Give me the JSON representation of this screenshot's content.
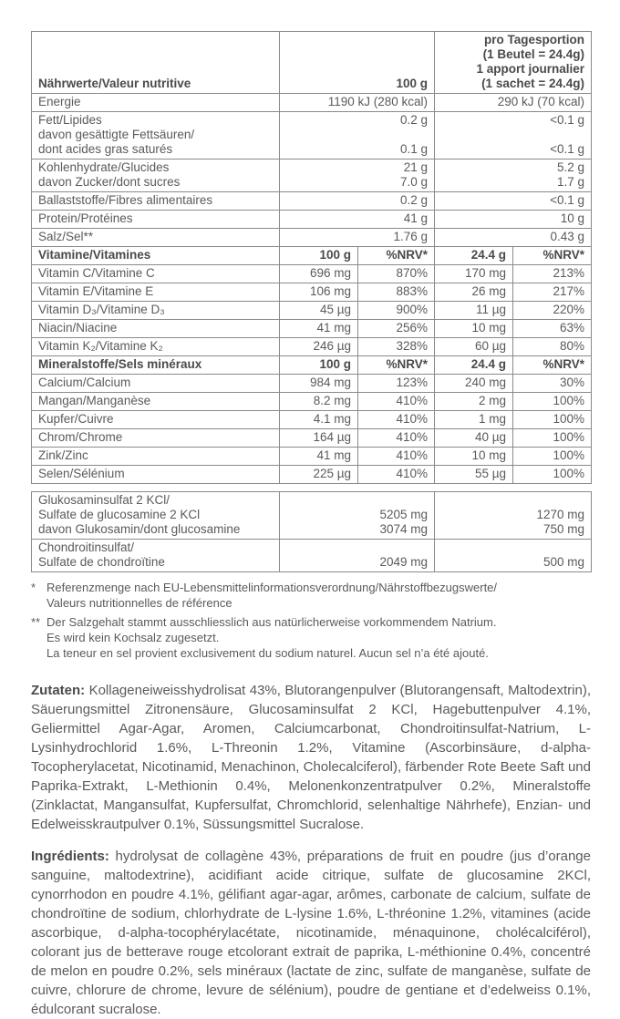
{
  "header": {
    "label": "Nährwerte/Valeur nutritive",
    "col_100g": "100 g",
    "col_portion": [
      "pro Tagesportion",
      "(1 Beutel = 24.4g)",
      "1 apport journalier",
      "(1 sachet = 24.4g)"
    ]
  },
  "nutrients": [
    {
      "label": [
        "Energie"
      ],
      "v100": [
        "1190 kJ (280 kcal)"
      ],
      "vp": [
        "290 kJ (70 kcal)"
      ]
    },
    {
      "label": [
        "Fett/Lipides",
        "davon gesättigte Fettsäuren/",
        "dont acides gras saturés"
      ],
      "v100": [
        "0.2 g",
        "",
        "0.1 g"
      ],
      "vp": [
        "<0.1 g",
        "",
        "<0.1 g"
      ]
    },
    {
      "label": [
        "Kohlenhydrate/Glucides",
        "davon Zucker/dont sucres"
      ],
      "v100": [
        "21 g",
        "7.0 g"
      ],
      "vp": [
        "5.2 g",
        "1.7 g"
      ]
    },
    {
      "label": [
        "Ballaststoffe/Fibres alimentaires"
      ],
      "v100": [
        "0.2 g"
      ],
      "vp": [
        "<0.1 g"
      ]
    },
    {
      "label": [
        "Protein/Protéines"
      ],
      "v100": [
        "41 g"
      ],
      "vp": [
        "10 g"
      ]
    },
    {
      "label": [
        "Salz/Sel**"
      ],
      "v100": [
        "1.76 g"
      ],
      "vp": [
        "0.43 g"
      ]
    }
  ],
  "vitamins": {
    "header": {
      "label": "Vitamine/Vitamines",
      "c1": "100 g",
      "c2": "%NRV*",
      "c3": "24.4 g",
      "c4": "%NRV*"
    },
    "rows": [
      {
        "label": "Vitamin C/Vitamine C",
        "c1": "696 mg",
        "c2": "870%",
        "c3": "170 mg",
        "c4": "213%"
      },
      {
        "label": "Vitamin E/Vitamine E",
        "c1": "106 mg",
        "c2": "883%",
        "c3": "26 mg",
        "c4": "217%"
      },
      {
        "label": "Vitamin D₃/Vitamine D₃",
        "c1": "45 µg",
        "c2": "900%",
        "c3": "11 µg",
        "c4": "220%"
      },
      {
        "label": "Niacin/Niacine",
        "c1": "41 mg",
        "c2": "256%",
        "c3": "10 mg",
        "c4": "63%"
      },
      {
        "label": "Vitamin K₂/Vitamine K₂",
        "c1": "246 µg",
        "c2": "328%",
        "c3": "60 µg",
        "c4": "80%"
      }
    ]
  },
  "minerals": {
    "header": {
      "label": "Mineralstoffe/Sels minéraux",
      "c1": "100 g",
      "c2": "%NRV*",
      "c3": "24.4 g",
      "c4": "%NRV*"
    },
    "rows": [
      {
        "label": "Calcium/Calcium",
        "c1": "984 mg",
        "c2": "123%",
        "c3": "240 mg",
        "c4": "30%"
      },
      {
        "label": "Mangan/Manganèse",
        "c1": "8.2 mg",
        "c2": "410%",
        "c3": "2 mg",
        "c4": "100%"
      },
      {
        "label": "Kupfer/Cuivre",
        "c1": "4.1 mg",
        "c2": "410%",
        "c3": "1 mg",
        "c4": "100%"
      },
      {
        "label": "Chrom/Chrome",
        "c1": "164 µg",
        "c2": "410%",
        "c3": "40 µg",
        "c4": "100%"
      },
      {
        "label": "Zink/Zinc",
        "c1": "41 mg",
        "c2": "410%",
        "c3": "10 mg",
        "c4": "100%"
      },
      {
        "label": "Selen/Sélénium",
        "c1": "225 µg",
        "c2": "410%",
        "c3": "55 µg",
        "c4": "100%"
      }
    ]
  },
  "extras": [
    {
      "label": [
        "Glukosaminsulfat 2 KCl/",
        "Sulfate de glucosamine 2 KCl",
        "davon Glukosamin/dont glucosamine"
      ],
      "v100": [
        "",
        "5205 mg",
        "3074 mg"
      ],
      "vp": [
        "",
        "1270 mg",
        "750 mg"
      ]
    },
    {
      "label": [
        "Chondroitinsulfat/",
        "Sulfate de chondroïtine"
      ],
      "v100": [
        "",
        "2049 mg"
      ],
      "vp": [
        "",
        "500 mg"
      ]
    }
  ],
  "footnotes": [
    {
      "mark": "*",
      "lines": [
        "Referenzmenge nach EU-Lebensmittelinformationsverordnung/Nährstoffbezugswerte/",
        "Valeurs nutritionnelles de référence"
      ]
    },
    {
      "mark": "**",
      "lines": [
        "Der Salzgehalt stammt ausschliesslich aus natürlicherweise vorkommendem Natrium.",
        "Es wird kein Kochsalz zugesetzt.",
        "La teneur en sel provient exclusivement du sodium naturel. Aucun sel n’a été ajouté."
      ]
    }
  ],
  "ingredients_de": {
    "label": "Zutaten:",
    "text": "Kollageneiweisshydrolisat 43%, Blutorangenpulver (Blutorangensaft, Maltodextrin), Säuerungsmittel Zitronensäure, Glucosaminsulfat 2 KCl, Hagebuttenpulver 4.1%, Geliermittel Agar-Agar, Aromen, Calciumcarbonat, Chondroitinsulfat-Natrium, L-Lysinhydrochlorid 1.6%, L-Threonin 1.2%, Vitamine (Ascorbinsäure, d-alpha-Tocopherylacetat, Nicotinamid, Menachinon, Cholecalciferol), färbender Rote Beete Saft und Paprika-Extrakt, L-Methionin 0.4%, Melonenkonzentratpulver 0.2%, Mineralstoffe (Zinklactat, Mangansulfat, Kupfersulfat, Chromchlorid, selenhaltige Nährhefe), Enzian- und Edelweisskrautpulver 0.1%, Süssungsmittel Sucralose."
  },
  "ingredients_fr": {
    "label": "Ingrédients:",
    "text": "hydrolysat de collagène 43%, préparations de fruit en poudre (jus d’orange sanguine, maltodextrine), acidifiant acide citrique, sulfate de glucosamine 2KCl, cynorrhodon en poudre 4.1%, gélifiant agar-agar, arômes, carbonate de calcium, sulfate de chondroïtine de sodium, chlorhydrate de L-lysine 1.6%, L-thréonine 1.2%, vitamines (acide ascorbique, d-alpha-tocophérylacétate, nicotinamide, ménaquinone, cholécalciférol), colorant jus de betterave rouge etcolorant extrait de paprika, L-méthionine 0.4%, concentré de melon en poudre 0.2%, sels minéraux (lactate de zinc, sulfate de manganèse, sulfate de cuivre, chlorure de chrome, levure de sélénium), poudre de gentiane et d’edelweiss 0.1%, édulcorant sucralose."
  }
}
